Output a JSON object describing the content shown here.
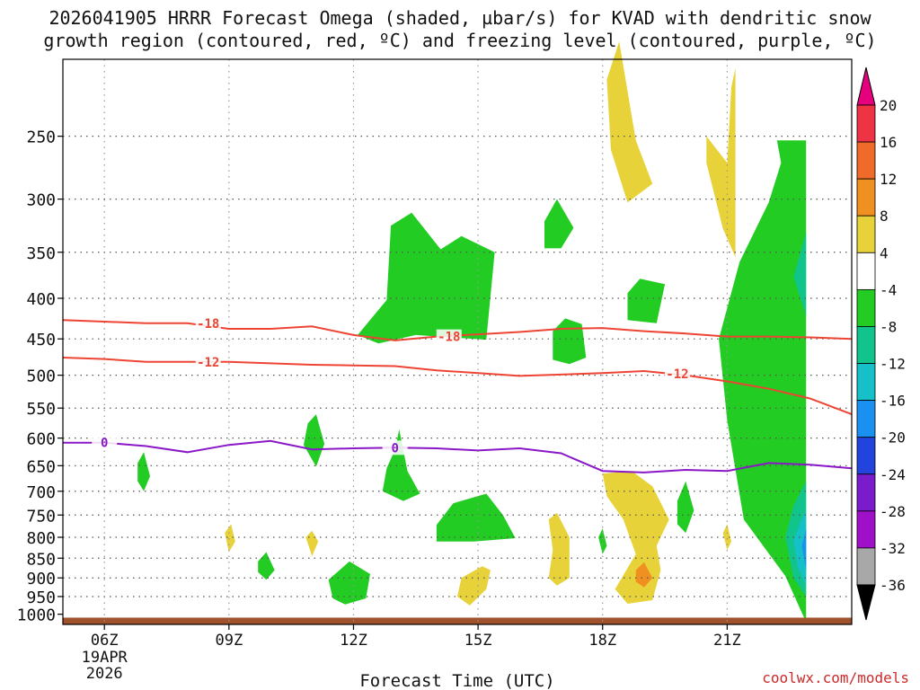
{
  "title_line1": "2026041905 HRRR Forecast Omega (shaded, µbar/s) for KVAD with dendritic snow",
  "title_line2": "growth region (contoured, red, ºC) and freezing level (contoured, purple, ºC)",
  "credit": "coolwx.com/models",
  "chart_data": {
    "type": "contour",
    "xlabel": "Forecast Time (UTC)",
    "x_domain_hours": [
      5,
      24
    ],
    "x_ticks": [
      {
        "hour": 6,
        "label": "06Z",
        "sub": [
          "19APR",
          "2026"
        ]
      },
      {
        "hour": 9,
        "label": "09Z",
        "sub": []
      },
      {
        "hour": 12,
        "label": "12Z",
        "sub": []
      },
      {
        "hour": 15,
        "label": "15Z",
        "sub": []
      },
      {
        "hour": 18,
        "label": "18Z",
        "sub": []
      },
      {
        "hour": 21,
        "label": "21Z",
        "sub": []
      }
    ],
    "y_axis": {
      "type": "log-pressure",
      "range_hpa": [
        200,
        1030
      ],
      "ticks": [
        250,
        300,
        350,
        400,
        450,
        500,
        550,
        600,
        650,
        700,
        750,
        800,
        850,
        900,
        950,
        1000
      ]
    },
    "terrain": {
      "color": "#a0522d",
      "top_hpa": 1010
    },
    "colorbar": {
      "labels": [
        "20",
        "16",
        "12",
        "8",
        "4",
        "-4",
        "-8",
        "-12",
        "-16",
        "-20",
        "-24",
        "-28",
        "-32",
        "-36"
      ],
      "bins": [
        {
          "lo": 20,
          "hi": null,
          "color": "#e6007e"
        },
        {
          "lo": 16,
          "hi": 20,
          "color": "#ee3344"
        },
        {
          "lo": 12,
          "hi": 16,
          "color": "#f06a2a"
        },
        {
          "lo": 8,
          "hi": 12,
          "color": "#f09020"
        },
        {
          "lo": 4,
          "hi": 8,
          "color": "#e8d23a"
        },
        {
          "lo": -4,
          "hi": 4,
          "color": "#ffffff"
        },
        {
          "lo": -8,
          "hi": -4,
          "color": "#22cc22"
        },
        {
          "lo": -12,
          "hi": -8,
          "color": "#11c48c"
        },
        {
          "lo": -16,
          "hi": -12,
          "color": "#16c0c8"
        },
        {
          "lo": -20,
          "hi": -16,
          "color": "#1a90f0"
        },
        {
          "lo": -24,
          "hi": -20,
          "color": "#2244dd"
        },
        {
          "lo": -28,
          "hi": -24,
          "color": "#7a1ccc"
        },
        {
          "lo": -32,
          "hi": -28,
          "color": "#a010c8"
        },
        {
          "lo": -36,
          "hi": -32,
          "color": "#a8a8a8"
        },
        {
          "lo": null,
          "hi": -36,
          "color": "#000000"
        }
      ]
    },
    "temperature_contours": [
      {
        "label": "-18",
        "color": "#ee4433",
        "points": [
          [
            5,
            426
          ],
          [
            6,
            428
          ],
          [
            7,
            430
          ],
          [
            8,
            430
          ],
          [
            9,
            437
          ],
          [
            10,
            437
          ],
          [
            11,
            434
          ],
          [
            12,
            445
          ],
          [
            13,
            452
          ],
          [
            14,
            447
          ],
          [
            15,
            444
          ],
          [
            16,
            441
          ],
          [
            17,
            437
          ],
          [
            18,
            436
          ],
          [
            19,
            440
          ],
          [
            20,
            443
          ],
          [
            21,
            447
          ],
          [
            22,
            447
          ],
          [
            23,
            448
          ],
          [
            24,
            450
          ]
        ],
        "label_at": [
          [
            8.5,
            430
          ],
          [
            14.3,
            447
          ]
        ]
      },
      {
        "label": "-12",
        "color": "#ee4433",
        "points": [
          [
            5,
            475
          ],
          [
            6,
            477
          ],
          [
            7,
            481
          ],
          [
            8,
            481
          ],
          [
            9,
            481
          ],
          [
            10,
            483
          ],
          [
            11,
            485
          ],
          [
            12,
            486
          ],
          [
            13,
            487
          ],
          [
            14,
            493
          ],
          [
            15,
            497
          ],
          [
            16,
            501
          ],
          [
            17,
            499
          ],
          [
            18,
            497
          ],
          [
            19,
            494
          ],
          [
            20,
            500
          ],
          [
            21,
            509
          ],
          [
            22,
            520
          ],
          [
            23,
            535
          ],
          [
            24,
            560
          ]
        ],
        "label_at": [
          [
            8.5,
            481
          ],
          [
            19.8,
            498
          ]
        ]
      },
      {
        "label": "0",
        "color": "#8a18c8",
        "points": [
          [
            5,
            608
          ],
          [
            6,
            608
          ],
          [
            7,
            614
          ],
          [
            8,
            625
          ],
          [
            9,
            612
          ],
          [
            10,
            605
          ],
          [
            11,
            620
          ],
          [
            12,
            618
          ],
          [
            13,
            617
          ],
          [
            14,
            618
          ],
          [
            15,
            622
          ],
          [
            16,
            618
          ],
          [
            17,
            627
          ],
          [
            18,
            660
          ],
          [
            19,
            663
          ],
          [
            20,
            658
          ],
          [
            21,
            660
          ],
          [
            22,
            645
          ],
          [
            23,
            648
          ],
          [
            24,
            655
          ]
        ],
        "label_at": [
          [
            6,
            608
          ],
          [
            13,
            617
          ]
        ]
      }
    ],
    "omega_regions": [
      {
        "value": 6,
        "color_index": 4,
        "points": [
          [
            18.1,
            212
          ],
          [
            18.4,
            190
          ],
          [
            18.8,
            253
          ],
          [
            19.2,
            287
          ],
          [
            18.6,
            303
          ],
          [
            18.2,
            260
          ]
        ]
      },
      {
        "value": 6,
        "color_index": 4,
        "points": [
          [
            21.0,
            270
          ],
          [
            21.1,
            217
          ],
          [
            21.2,
            205
          ],
          [
            21.2,
            355
          ],
          [
            20.9,
            327
          ],
          [
            20.5,
            270
          ],
          [
            20.5,
            250
          ]
        ]
      },
      {
        "value": -6,
        "color_index": 6,
        "points": [
          [
            12.9,
            324
          ],
          [
            13.4,
            312
          ],
          [
            14.1,
            347
          ],
          [
            14.6,
            334
          ],
          [
            15.4,
            350
          ],
          [
            15.2,
            451
          ],
          [
            13.5,
            445
          ],
          [
            12.6,
            456
          ],
          [
            12.1,
            445
          ],
          [
            12.8,
            402
          ]
        ]
      },
      {
        "value": -6,
        "color_index": 6,
        "points": [
          [
            16.6,
            320
          ],
          [
            16.9,
            300
          ],
          [
            17.3,
            326
          ],
          [
            17.0,
            346
          ],
          [
            16.6,
            346
          ]
        ]
      },
      {
        "value": -6,
        "color_index": 6,
        "points": [
          [
            18.6,
            394
          ],
          [
            18.9,
            378
          ],
          [
            19.5,
            384
          ],
          [
            19.3,
            430
          ],
          [
            18.6,
            426
          ]
        ]
      },
      {
        "value": -6,
        "color_index": 6,
        "points": [
          [
            16.8,
            440
          ],
          [
            17.1,
            424
          ],
          [
            17.5,
            431
          ],
          [
            17.6,
            475
          ],
          [
            17.2,
            484
          ],
          [
            16.8,
            478
          ]
        ]
      },
      {
        "value": -6,
        "color_index": 6,
        "points": [
          [
            22.2,
            253
          ],
          [
            22.9,
            253
          ],
          [
            22.9,
            1023
          ],
          [
            22.4,
            895
          ],
          [
            21.4,
            760
          ],
          [
            21.0,
            570
          ],
          [
            20.8,
            450
          ],
          [
            21.3,
            360
          ],
          [
            22.0,
            303
          ],
          [
            22.3,
            270
          ]
        ]
      },
      {
        "value": -10,
        "color_index": 7,
        "points": [
          [
            22.9,
            330
          ],
          [
            22.6,
            376
          ],
          [
            22.9,
            421
          ]
        ]
      },
      {
        "value": -10,
        "color_index": 7,
        "points": [
          [
            22.4,
            800
          ],
          [
            22.6,
            730
          ],
          [
            22.9,
            680
          ],
          [
            22.9,
            950
          ],
          [
            22.6,
            900
          ]
        ]
      },
      {
        "value": -14,
        "color_index": 8,
        "points": [
          [
            22.6,
            808
          ],
          [
            22.8,
            757
          ],
          [
            22.9,
            740
          ],
          [
            22.9,
            920
          ],
          [
            22.7,
            870
          ]
        ]
      },
      {
        "value": -18,
        "color_index": 9,
        "points": [
          [
            22.8,
            820
          ],
          [
            22.9,
            780
          ],
          [
            22.9,
            880
          ],
          [
            22.85,
            850
          ]
        ]
      },
      {
        "value": -6,
        "color_index": 6,
        "points": [
          [
            13.0,
            620
          ],
          [
            13.1,
            585
          ],
          [
            13.3,
            660
          ],
          [
            13.6,
            705
          ],
          [
            13.2,
            720
          ],
          [
            12.7,
            700
          ],
          [
            12.8,
            655
          ]
        ]
      },
      {
        "value": -6,
        "color_index": 6,
        "points": [
          [
            10.9,
            575
          ],
          [
            11.1,
            560
          ],
          [
            11.3,
            610
          ],
          [
            11.1,
            652
          ],
          [
            10.8,
            612
          ]
        ]
      },
      {
        "value": -6,
        "color_index": 6,
        "points": [
          [
            6.8,
            645
          ],
          [
            6.95,
            625
          ],
          [
            7.1,
            670
          ],
          [
            6.95,
            700
          ],
          [
            6.8,
            680
          ]
        ]
      },
      {
        "value": -6,
        "color_index": 6,
        "points": [
          [
            14.0,
            772
          ],
          [
            14.4,
            725
          ],
          [
            15.2,
            705
          ],
          [
            15.6,
            750
          ],
          [
            15.9,
            802
          ],
          [
            14.9,
            810
          ],
          [
            14.0,
            810
          ]
        ]
      },
      {
        "value": -6,
        "color_index": 6,
        "points": [
          [
            11.4,
            905
          ],
          [
            11.9,
            858
          ],
          [
            12.4,
            890
          ],
          [
            12.3,
            955
          ],
          [
            11.8,
            972
          ],
          [
            11.5,
            955
          ]
        ]
      },
      {
        "value": -6,
        "color_index": 6,
        "points": [
          [
            9.7,
            858
          ],
          [
            9.9,
            835
          ],
          [
            10.1,
            880
          ],
          [
            9.9,
            905
          ],
          [
            9.7,
            885
          ]
        ]
      },
      {
        "value": -6,
        "color_index": 6,
        "points": [
          [
            19.8,
            720
          ],
          [
            20.0,
            680
          ],
          [
            20.2,
            740
          ],
          [
            20.0,
            790
          ],
          [
            19.8,
            770
          ]
        ]
      },
      {
        "value": -6,
        "color_index": 6,
        "points": [
          [
            17.9,
            800
          ],
          [
            18.0,
            780
          ],
          [
            18.1,
            820
          ],
          [
            18.0,
            840
          ]
        ]
      },
      {
        "value": 6,
        "color_index": 4,
        "points": [
          [
            18.0,
            665
          ],
          [
            18.7,
            660
          ],
          [
            19.2,
            690
          ],
          [
            19.6,
            760
          ],
          [
            19.3,
            820
          ],
          [
            19.4,
            880
          ],
          [
            19.2,
            960
          ],
          [
            18.6,
            970
          ],
          [
            18.3,
            930
          ],
          [
            18.8,
            840
          ],
          [
            18.5,
            760
          ],
          [
            18.1,
            710
          ]
        ]
      },
      {
        "value": 6,
        "color_index": 4,
        "points": [
          [
            16.7,
            760
          ],
          [
            16.9,
            745
          ],
          [
            17.2,
            800
          ],
          [
            17.2,
            900
          ],
          [
            16.9,
            920
          ],
          [
            16.7,
            900
          ],
          [
            16.8,
            830
          ]
        ]
      },
      {
        "value": 6,
        "color_index": 4,
        "points": [
          [
            14.6,
            900
          ],
          [
            15.1,
            870
          ],
          [
            15.3,
            880
          ],
          [
            15.2,
            930
          ],
          [
            14.8,
            975
          ],
          [
            14.5,
            950
          ]
        ]
      },
      {
        "value": 10,
        "color_index": 3,
        "points": [
          [
            18.8,
            880
          ],
          [
            19.0,
            860
          ],
          [
            19.2,
            900
          ],
          [
            19.0,
            925
          ],
          [
            18.8,
            910
          ]
        ]
      },
      {
        "value": 6,
        "color_index": 4,
        "points": [
          [
            8.9,
            790
          ],
          [
            9.05,
            770
          ],
          [
            9.15,
            810
          ],
          [
            9.0,
            835
          ]
        ]
      },
      {
        "value": 6,
        "color_index": 4,
        "points": [
          [
            10.85,
            800
          ],
          [
            11.0,
            785
          ],
          [
            11.15,
            810
          ],
          [
            11.0,
            845
          ]
        ]
      },
      {
        "value": 6,
        "color_index": 4,
        "points": [
          [
            20.9,
            790
          ],
          [
            21.0,
            770
          ],
          [
            21.1,
            810
          ],
          [
            21.0,
            830
          ]
        ]
      }
    ]
  }
}
